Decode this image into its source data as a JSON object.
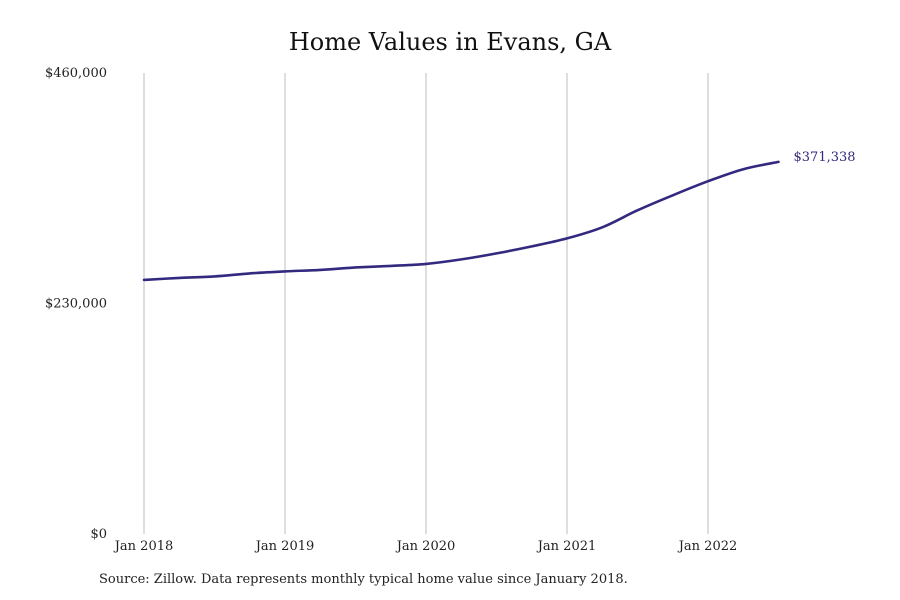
{
  "chart_data": {
    "type": "line",
    "title": "Home Values in Evans, GA",
    "xlabel": "",
    "ylabel": "",
    "y_ticks": [
      "$0",
      "$230,000",
      "$460,000"
    ],
    "ylim": [
      0,
      460000
    ],
    "x_ticks": [
      "Jan 2018",
      "Jan 2019",
      "Jan 2020",
      "Jan 2021",
      "Jan 2022"
    ],
    "xlim": [
      "2018-01",
      "2022-07"
    ],
    "grid": "vertical",
    "legend": "none",
    "series": [
      {
        "color": "#33297f",
        "end_label": "$371,338",
        "points": [
          [
            "2018-01",
            253500
          ],
          [
            "2018-04",
            255500
          ],
          [
            "2018-07",
            257000
          ],
          [
            "2018-10",
            260000
          ],
          [
            "2019-01",
            262000
          ],
          [
            "2019-04",
            263500
          ],
          [
            "2019-07",
            266000
          ],
          [
            "2019-10",
            267500
          ],
          [
            "2020-01",
            269500
          ],
          [
            "2020-04",
            274000
          ],
          [
            "2020-07",
            280000
          ],
          [
            "2020-10",
            287000
          ],
          [
            "2021-01",
            295000
          ],
          [
            "2021-04",
            306000
          ],
          [
            "2021-07",
            323000
          ],
          [
            "2021-10",
            338000
          ],
          [
            "2022-01",
            352000
          ],
          [
            "2022-04",
            364000
          ],
          [
            "2022-07",
            371338
          ]
        ]
      }
    ]
  },
  "footer": {
    "source": "Source: Zillow. Data represents monthly typical home value since January 2018."
  }
}
